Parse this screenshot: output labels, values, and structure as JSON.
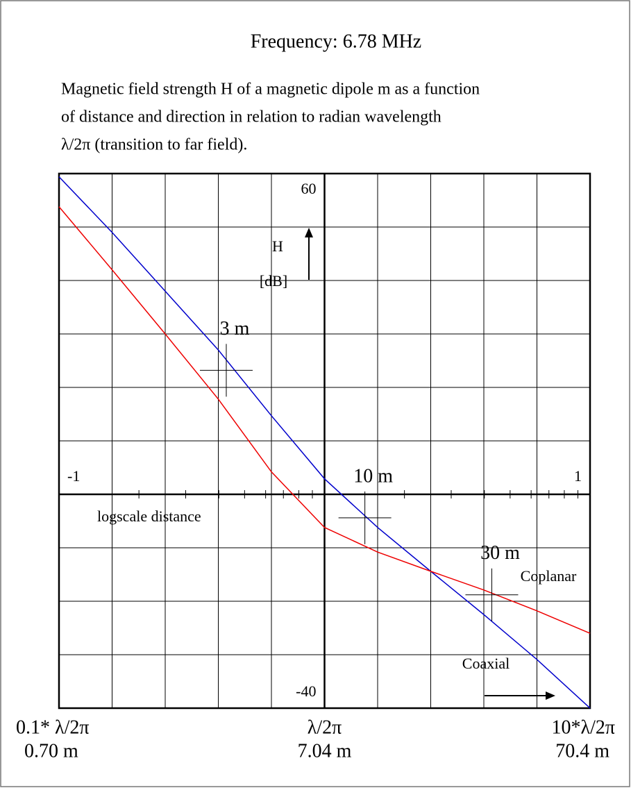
{
  "chart_data": {
    "type": "line",
    "title": "Frequency: 6.78 MHz",
    "subtitle": [
      "Magnetic field strength H of a magnetic dipole m as a function",
      "of distance and direction in relation to radian wavelength",
      "λ/2π (transition to far field)."
    ],
    "xlabel": "logscale distance",
    "ylabel": "H",
    "yunit": "[dB]",
    "x": [
      -1,
      -0.8,
      -0.6,
      -0.4,
      -0.2,
      0,
      0.2,
      0.4,
      0.6,
      0.8,
      1
    ],
    "series": [
      {
        "name": "Coaxial",
        "color": "#0000cc",
        "values": [
          59.4,
          49.0,
          38.0,
          27.0,
          14.7,
          2.9,
          -6.2,
          -14.4,
          -22.5,
          -30.9,
          -40
        ]
      },
      {
        "name": "Coplanar",
        "color": "#ee0000",
        "values": [
          53.8,
          42.0,
          30.0,
          17.8,
          4.2,
          -6.2,
          -10.8,
          -14.4,
          -17.9,
          -21.8,
          -26
        ]
      }
    ],
    "xlim": [
      -1,
      1
    ],
    "ylim": [
      -40,
      60
    ],
    "xticks": [
      -1,
      1
    ],
    "yticks": [
      -40,
      60
    ],
    "xgrid": [
      -0.8,
      -0.6,
      -0.4,
      -0.2,
      0,
      0.2,
      0.4,
      0.6,
      0.8
    ],
    "ygrid": [
      -30,
      -20,
      -10,
      0,
      10,
      20,
      30,
      40,
      50
    ],
    "minor_tick_multipliers": [
      2,
      3,
      4,
      5,
      6,
      7,
      8,
      9
    ],
    "distance_labels": [
      {
        "x": -1,
        "label": "0.1* λ/2π",
        "meters": "0.70 m"
      },
      {
        "x": 0,
        "label": "λ/2π",
        "meters": "7.04 m"
      },
      {
        "x": 1,
        "label": "10*λ/2π",
        "meters": "70.4 m"
      }
    ],
    "markers": [
      {
        "label": "3 m",
        "x": -0.37,
        "y": 23.2
      },
      {
        "label": "10 m",
        "x": 0.152,
        "y": -4.4
      },
      {
        "label": "30 m",
        "x": 0.63,
        "y": -18.8
      }
    ]
  }
}
